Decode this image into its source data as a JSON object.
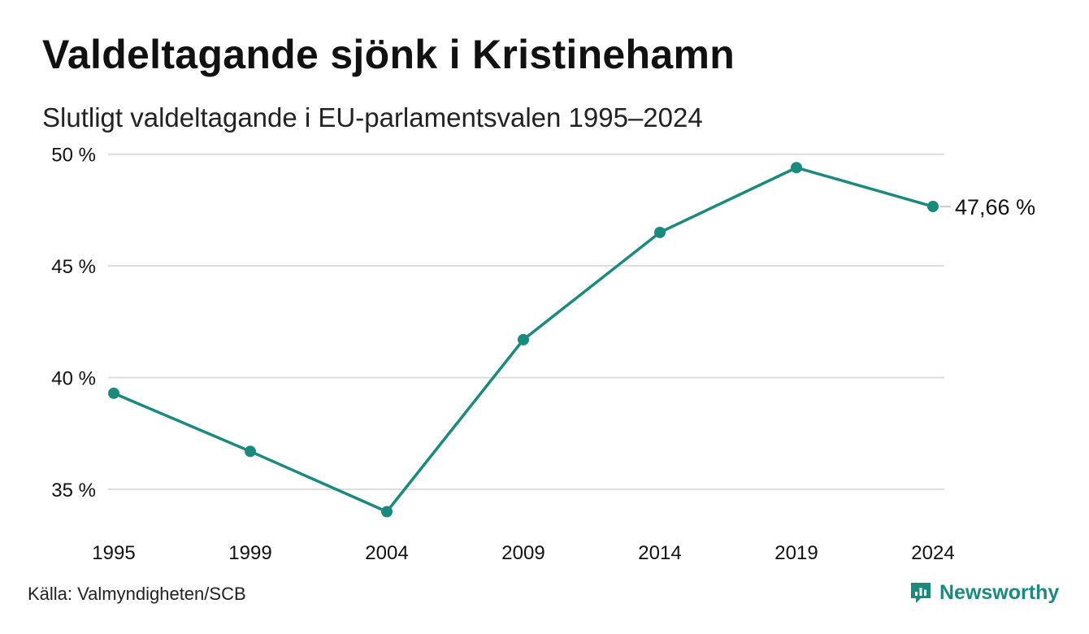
{
  "chart_data": {
    "type": "line",
    "title": "Valdeltagande sjönk i Kristinehamn",
    "subtitle": "Slutligt valdeltagande i EU-parlamentsvalen 1995–2024",
    "x": [
      "1995",
      "1999",
      "2004",
      "2009",
      "2014",
      "2019",
      "2024"
    ],
    "series": [
      {
        "values": [
          39.3,
          36.7,
          34.0,
          41.7,
          46.5,
          49.4,
          47.66
        ],
        "color": "#1a8a7e"
      }
    ],
    "yticks": [
      "35 %",
      "40 %",
      "45 %",
      "50 %"
    ],
    "ytick_values": [
      35,
      40,
      45,
      50
    ],
    "ylim": [
      33.4,
      50.5
    ],
    "end_label": "47,66 %",
    "grid": true,
    "legend": "none",
    "colors": {
      "line": "#1a8a7e",
      "grid": "#dddddd",
      "text": "#111111"
    }
  },
  "footer": {
    "source": "Källa: Valmyndigheten/SCB",
    "brand": "Newsworthy",
    "brand_icon": "newsworthy-logo-icon",
    "brand_color": "#1a8a7e"
  }
}
